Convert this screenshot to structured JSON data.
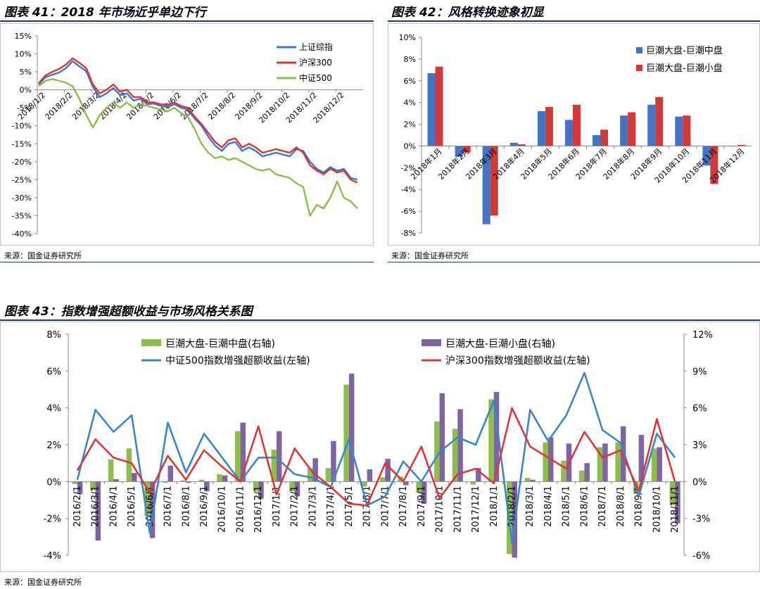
{
  "figures": {
    "fig41": {
      "title": "图表 41：2018 年市场近乎单边下行",
      "source": "来源：国金证券研究所"
    },
    "fig42": {
      "title": "图表 42：风格转换迹象初显",
      "source": "来源：国金证券研究所"
    },
    "fig43": {
      "title": "图表 43：指数增强超额收益与市场风格关系图",
      "source": "来源：国金证券研究所"
    }
  },
  "colors": {
    "blue": "#4472c4",
    "red": "#d03a3a",
    "green": "#8dbd4a",
    "purple": "#8064a2",
    "line_blue": "#3a86c9",
    "line_red": "#d9383a"
  },
  "chart_data": [
    {
      "id": "fig41",
      "type": "line",
      "title": "",
      "xlabel": "",
      "ylabel": "",
      "ylim": [
        -40,
        15
      ],
      "y_ticks": [
        "15%",
        "10%",
        "5%",
        "0%",
        "-5%",
        "-10%",
        "-15%",
        "-20%",
        "-25%",
        "-30%",
        "-35%",
        "-40%"
      ],
      "x_ticks": [
        "2018/1/2",
        "2018/2/2",
        "2018/3/2",
        "2018/4/2",
        "2018/5/2",
        "2018/6/2",
        "2018/7/2",
        "2018/8/2",
        "2018/9/2",
        "2018/10/2",
        "2018/11/2",
        "2018/12/2"
      ],
      "legend_position": "top-right",
      "grid": false,
      "series": [
        {
          "name": "上证综指",
          "color": "#4472c4",
          "values": [
            1.5,
            3.5,
            4.2,
            4.8,
            6.0,
            8.0,
            6.5,
            5.2,
            0.8,
            -2.0,
            -1.0,
            0.5,
            -1.5,
            -1.0,
            -3.0,
            -2.5,
            -4.0,
            -3.8,
            -4.5,
            -4.8,
            -4.0,
            -5.0,
            -5.5,
            -8.0,
            -10.0,
            -13.0,
            -15.5,
            -17.0,
            -15.0,
            -14.5,
            -17.0,
            -16.0,
            -17.0,
            -18.5,
            -18.0,
            -17.5,
            -18.0,
            -18.5,
            -16.5,
            -17.0,
            -20.0,
            -22.0,
            -23.0,
            -21.5,
            -22.5,
            -22.0,
            -24.5,
            -25.0
          ]
        },
        {
          "name": "沪深300",
          "color": "#d03a3a",
          "values": [
            1.8,
            4.0,
            5.0,
            5.8,
            7.0,
            8.8,
            7.5,
            6.0,
            1.5,
            -1.0,
            0.0,
            1.5,
            -0.5,
            0.0,
            -2.0,
            -2.0,
            -3.5,
            -3.5,
            -4.0,
            -4.2,
            -3.5,
            -4.5,
            -5.0,
            -7.5,
            -9.5,
            -12.0,
            -14.5,
            -16.0,
            -14.0,
            -13.5,
            -16.0,
            -15.0,
            -16.0,
            -17.5,
            -17.0,
            -16.5,
            -17.0,
            -17.5,
            -16.0,
            -17.5,
            -21.0,
            -22.5,
            -23.5,
            -22.0,
            -23.0,
            -22.5,
            -25.0,
            -25.8
          ]
        },
        {
          "name": "中证500",
          "color": "#8dbd4a",
          "values": [
            1.0,
            2.5,
            3.0,
            2.5,
            2.0,
            1.0,
            -2.5,
            -7.0,
            -10.5,
            -7.0,
            -5.0,
            -3.5,
            -5.0,
            -3.5,
            -5.0,
            -4.0,
            -4.5,
            -5.0,
            -5.5,
            -6.0,
            -5.0,
            -6.5,
            -7.5,
            -11.0,
            -15.0,
            -17.5,
            -19.0,
            -18.5,
            -19.5,
            -19.0,
            -20.0,
            -21.0,
            -22.0,
            -22.5,
            -22.0,
            -23.5,
            -24.0,
            -24.5,
            -26.0,
            -27.0,
            -35.0,
            -32.0,
            -33.0,
            -30.0,
            -25.5,
            -30.0,
            -31.0,
            -33.0
          ]
        }
      ]
    },
    {
      "id": "fig42",
      "type": "bar",
      "title": "",
      "xlabel": "",
      "ylabel": "",
      "ylim": [
        -8,
        10
      ],
      "y_ticks": [
        "10%",
        "8%",
        "6%",
        "4%",
        "2%",
        "0%",
        "-2%",
        "-4%",
        "-6%",
        "-8%"
      ],
      "categories": [
        "2018年1月",
        "2018年2月",
        "2018年3月",
        "2018年4月",
        "2018年5月",
        "2018年6月",
        "2018年7月",
        "2018年8月",
        "2018年9月",
        "2018年10月",
        "2018年11月",
        "2018年12月"
      ],
      "legend_position": "top-right",
      "grid": false,
      "series": [
        {
          "name": "巨潮大盘-巨潮中盘",
          "color": "#4472c4",
          "values": [
            6.7,
            -1.0,
            -7.2,
            0.3,
            3.2,
            2.4,
            1.0,
            2.8,
            3.8,
            2.7,
            -1.8,
            -0.05
          ]
        },
        {
          "name": "巨潮大盘-巨潮小盘",
          "color": "#d03a3a",
          "values": [
            7.3,
            -0.6,
            -6.4,
            0.15,
            3.6,
            3.8,
            1.5,
            3.1,
            4.5,
            2.8,
            -3.5,
            0.1
          ]
        }
      ]
    },
    {
      "id": "fig43",
      "type": "bar",
      "title": "",
      "xlabel": "",
      "ylabel": "",
      "ylim": [
        -4,
        8
      ],
      "y2lim": [
        -6,
        12
      ],
      "y_ticks": [
        "8%",
        "6%",
        "4%",
        "2%",
        "0%",
        "-2%",
        "-4%"
      ],
      "y2_ticks": [
        "12%",
        "9%",
        "6%",
        "3%",
        "0%",
        "-3%",
        "-6%"
      ],
      "categories": [
        "2016/2/1",
        "2016/3/1",
        "2016/4/1",
        "2016/5/1",
        "2016/6/1",
        "2016/7/1",
        "2016/8/1",
        "2016/9/1",
        "2016/10/1",
        "2016/11/1",
        "2016/12/1",
        "2017/1/1",
        "2017/2/1",
        "2017/3/1",
        "2017/4/1",
        "2017/5/1",
        "2017/6/1",
        "2017/7/1",
        "2017/8/1",
        "2017/9/1",
        "2017/10/1",
        "2017/11/1",
        "2017/12/1",
        "2018/1/1",
        "2018/2/1",
        "2018/3/1",
        "2018/4/1",
        "2018/5/1",
        "2018/6/1",
        "2018/7/1",
        "2018/8/1",
        "2018/9/1",
        "2018/10/1",
        "2018/11/1"
      ],
      "legend_position": "top",
      "grid": false,
      "series": [
        {
          "name": "巨潮大盘-巨潮中盘(右轴)",
          "kind": "bar",
          "axis": "right",
          "color": "#8dbd4a",
          "values": [
            -0.2,
            -0.7,
            1.8,
            2.7,
            -2.8,
            -0.1,
            0.1,
            0.15,
            0.6,
            4.1,
            -0.8,
            2.6,
            -0.8,
            1.1,
            1.1,
            7.9,
            -0.4,
            0.35,
            0.4,
            -0.9,
            4.9,
            4.3,
            -0.25,
            6.7,
            -5.9,
            0.3,
            3.2,
            1.7,
            0.9,
            2.8,
            3.2,
            -1.0,
            2.7,
            -1.9
          ]
        },
        {
          "name": "巨潮大盘-巨潮小盘(右轴)",
          "kind": "bar",
          "axis": "right",
          "color": "#8064a2",
          "values": [
            -1.0,
            -4.8,
            0.2,
            0.7,
            -4.6,
            1.3,
            -0.1,
            -0.8,
            0.5,
            4.8,
            -1.4,
            4.1,
            -1.2,
            1.9,
            3.3,
            8.8,
            1.0,
            1.85,
            -0.3,
            -1.8,
            7.2,
            5.9,
            1.1,
            7.3,
            -6.2,
            0.15,
            3.6,
            3.1,
            1.5,
            3.1,
            4.5,
            3.8,
            2.8,
            -3.4
          ]
        },
        {
          "name": "中证500指数增强超额收益(左轴)",
          "kind": "line",
          "axis": "left",
          "color": "#3a86c9",
          "values": [
            0.1,
            3.9,
            2.7,
            3.6,
            -2.8,
            3.2,
            0.5,
            2.6,
            1.3,
            0.0,
            1.3,
            1.3,
            0.4,
            0.2,
            -0.3,
            2.3,
            -1.3,
            -0.8,
            1.1,
            0.0,
            1.6,
            2.4,
            2.0,
            4.4,
            -3.3,
            3.9,
            2.2,
            3.6,
            5.9,
            2.8,
            2.1,
            -0.8,
            2.6,
            1.3
          ]
        },
        {
          "name": "沪深300指数增强超额收益(左轴)",
          "kind": "line",
          "axis": "left",
          "color": "#d9383a",
          "values": [
            0.6,
            2.3,
            1.3,
            1.0,
            -0.6,
            1.4,
            0.1,
            1.7,
            0.8,
            0.0,
            3.0,
            -0.7,
            1.8,
            0.5,
            -0.3,
            -1.2,
            -1.3,
            1.0,
            0.0,
            1.9,
            -0.9,
            0.4,
            0.7,
            -0.1,
            4.0,
            1.9,
            1.3,
            0.7,
            2.7,
            1.3,
            1.7,
            -0.5,
            3.4,
            0.0
          ]
        }
      ]
    }
  ]
}
